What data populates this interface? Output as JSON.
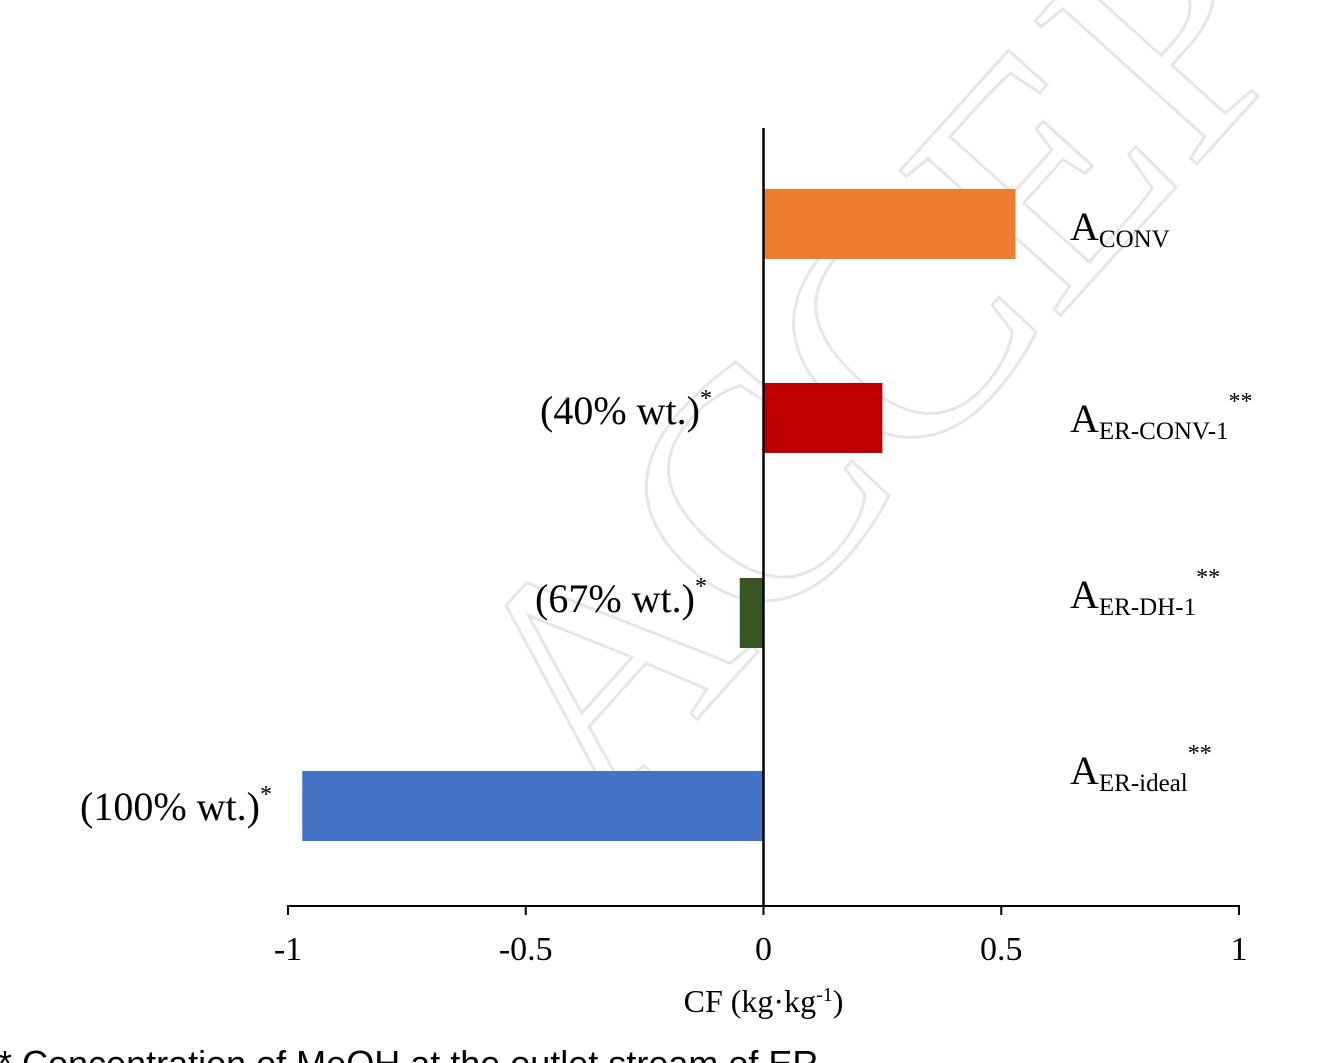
{
  "chart_data": {
    "type": "bar",
    "orientation": "horizontal",
    "xlabel": "CF (kg·kg",
    "xlabel_sup": "-1",
    "xlabel_end": ")",
    "xlim": [
      -1,
      1
    ],
    "xticks": [
      "-1",
      "-0.5",
      "0",
      "0.5",
      "1"
    ],
    "categories": [
      {
        "main": "A",
        "sub": "CONV",
        "sup": ""
      },
      {
        "main": "A",
        "sub": "ER-CONV-1",
        "sup": "**"
      },
      {
        "main": "A",
        "sub": "ER-DH-1",
        "sup": "**"
      },
      {
        "main": "A",
        "sub": "ER-ideal",
        "sup": "**"
      }
    ],
    "values": [
      0.53,
      0.25,
      -0.05,
      -0.97
    ],
    "colors": [
      "#ED7D31",
      "#C00000",
      "#375623",
      "#4472C4"
    ],
    "annotations": [
      {
        "text": "",
        "sup": ""
      },
      {
        "text": "(40% wt.)",
        "sup": "*"
      },
      {
        "text": "(67% wt.)",
        "sup": "*"
      },
      {
        "text": "(100% wt.)",
        "sup": "*"
      }
    ],
    "grid": false,
    "legend": "none"
  },
  "footnote": "* Concentration of MeOH at the outlet stream of ER",
  "watermark": "ACCEPTED"
}
